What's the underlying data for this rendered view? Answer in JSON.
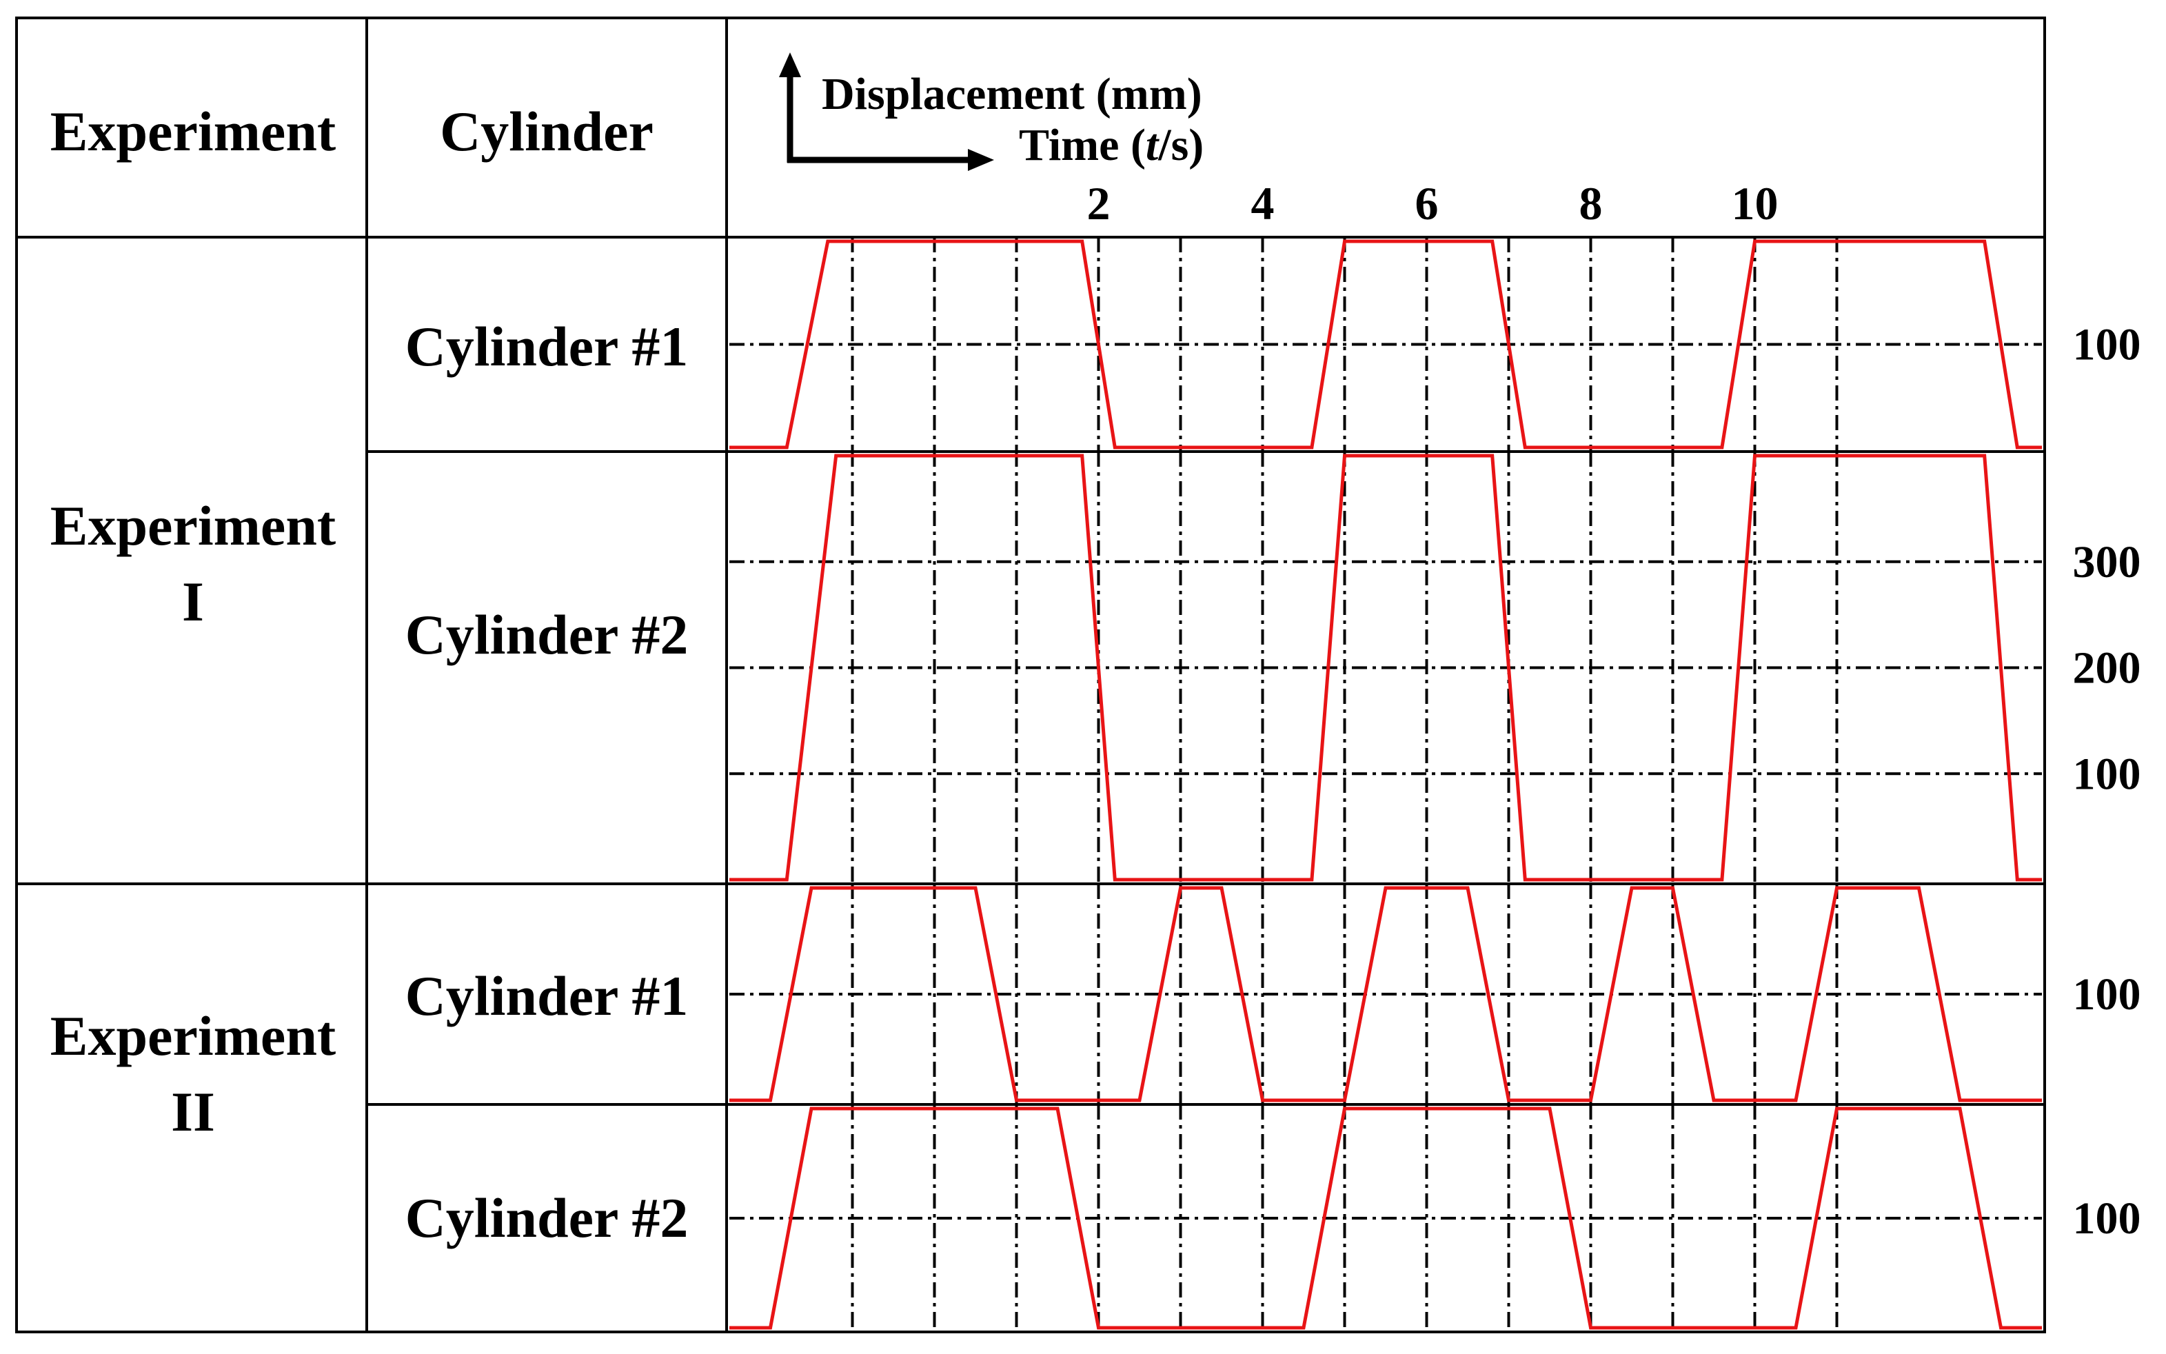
{
  "header": {
    "experiment_label": "Experiment",
    "cylinder_label": "Cylinder",
    "y_axis_title": "Displacement (mm)",
    "x_axis_title_prefix": "Time (",
    "x_axis_title_var": "t",
    "x_axis_title_suffix": "/s)"
  },
  "experiments": [
    {
      "label_line1": "Experiment",
      "label_line2": "I"
    },
    {
      "label_line1": "Experiment",
      "label_line2": "II"
    }
  ],
  "chart_data": {
    "type": "line",
    "x_unit": "s",
    "y_unit": "mm",
    "x_range": [
      -2.5,
      13.5
    ],
    "x_tick_labels": [
      "2",
      "4",
      "6",
      "8",
      "10"
    ],
    "x_ticks": [
      2,
      4,
      6,
      8,
      10
    ],
    "vertical_gridlines": [
      -1,
      0,
      1,
      2,
      3,
      4,
      5,
      6,
      7,
      8,
      9,
      10,
      11
    ],
    "line_color": "#e81416",
    "grid_color": "#000000",
    "rows": [
      {
        "cylinder": "Cylinder #1",
        "y_max": 200,
        "y_gridlines": [
          100
        ],
        "y_tick_labels": [
          "100"
        ],
        "points": [
          [
            -2.5,
            0
          ],
          [
            -1.8,
            0
          ],
          [
            -1.3,
            200
          ],
          [
            1.8,
            200
          ],
          [
            2.2,
            0
          ],
          [
            4.6,
            0
          ],
          [
            5.0,
            200
          ],
          [
            6.8,
            200
          ],
          [
            7.2,
            0
          ],
          [
            9.6,
            0
          ],
          [
            10.0,
            200
          ],
          [
            12.8,
            200
          ],
          [
            13.2,
            0
          ],
          [
            13.5,
            0
          ]
        ]
      },
      {
        "cylinder": "Cylinder #2",
        "y_max": 400,
        "y_gridlines": [
          100,
          200,
          300
        ],
        "y_tick_labels": [
          "300",
          "200",
          "100"
        ],
        "points": [
          [
            -2.5,
            0
          ],
          [
            -1.8,
            0
          ],
          [
            -1.2,
            400
          ],
          [
            1.8,
            400
          ],
          [
            2.2,
            0
          ],
          [
            4.6,
            0
          ],
          [
            5.0,
            400
          ],
          [
            6.8,
            400
          ],
          [
            7.2,
            0
          ],
          [
            9.6,
            0
          ],
          [
            10.0,
            400
          ],
          [
            12.8,
            400
          ],
          [
            13.2,
            0
          ],
          [
            13.5,
            0
          ]
        ]
      },
      {
        "cylinder": "Cylinder #1",
        "y_max": 200,
        "y_gridlines": [
          100
        ],
        "y_tick_labels": [
          "100"
        ],
        "points": [
          [
            -2.5,
            0
          ],
          [
            -2.0,
            0
          ],
          [
            -1.5,
            200
          ],
          [
            0.5,
            200
          ],
          [
            1.0,
            0
          ],
          [
            2.5,
            0
          ],
          [
            3.0,
            200
          ],
          [
            3.5,
            200
          ],
          [
            4.0,
            0
          ],
          [
            5.0,
            0
          ],
          [
            5.5,
            200
          ],
          [
            6.5,
            200
          ],
          [
            7.0,
            0
          ],
          [
            8.0,
            0
          ],
          [
            8.5,
            200
          ],
          [
            9.0,
            200
          ],
          [
            9.5,
            0
          ],
          [
            10.5,
            0
          ],
          [
            11.0,
            200
          ],
          [
            12.0,
            200
          ],
          [
            12.5,
            0
          ],
          [
            13.5,
            0
          ]
        ]
      },
      {
        "cylinder": "Cylinder #2",
        "y_max": 200,
        "y_gridlines": [
          100
        ],
        "y_tick_labels": [
          "100"
        ],
        "points": [
          [
            -2.5,
            0
          ],
          [
            -2.0,
            0
          ],
          [
            -1.5,
            200
          ],
          [
            1.5,
            200
          ],
          [
            2.0,
            0
          ],
          [
            4.5,
            0
          ],
          [
            5.0,
            200
          ],
          [
            7.5,
            200
          ],
          [
            8.0,
            0
          ],
          [
            10.5,
            0
          ],
          [
            11.0,
            200
          ],
          [
            12.5,
            200
          ],
          [
            13.0,
            0
          ],
          [
            13.5,
            0
          ]
        ]
      }
    ]
  }
}
